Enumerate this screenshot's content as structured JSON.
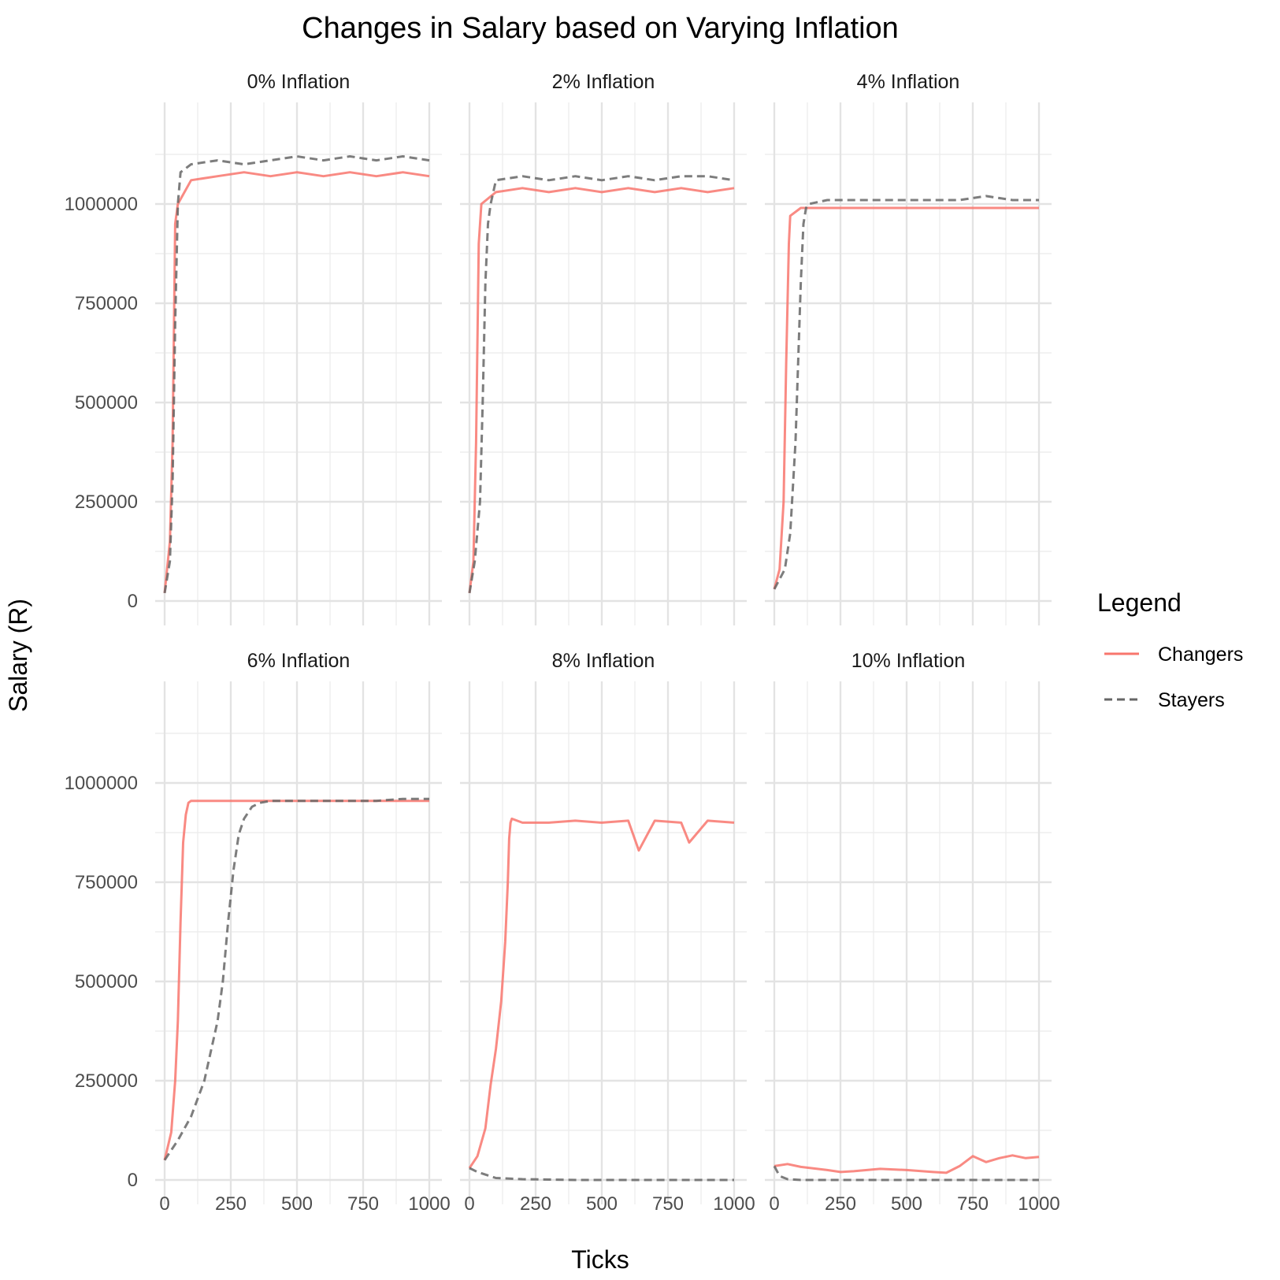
{
  "chart_data": {
    "type": "line",
    "title": "Changes in Salary based on Varying Inflation",
    "xlabel": "Ticks",
    "ylabel": "Salary (R)",
    "xlim": [
      0,
      1000
    ],
    "ylim": [
      0,
      1200000
    ],
    "x_ticks": [
      "0",
      "250",
      "500",
      "750",
      "1000"
    ],
    "y_ticks": [
      "0",
      "250000",
      "500000",
      "750000",
      "1000000"
    ],
    "grid": true,
    "legend": {
      "title": "Legend",
      "position": "right",
      "entries": [
        {
          "label": "Changers",
          "color": "#f8766d",
          "style": "solid"
        },
        {
          "label": "Stayers",
          "color": "#666666",
          "style": "dashed"
        }
      ]
    },
    "facets": [
      {
        "label": "0% Inflation",
        "series": [
          {
            "name": "Changers",
            "x": [
              0,
              20,
              30,
              40,
              50,
              100,
              200,
              300,
              400,
              500,
              600,
              700,
              800,
              900,
              1000
            ],
            "y": [
              20000,
              150000,
              400000,
              950000,
              1000000,
              1060000,
              1070000,
              1080000,
              1070000,
              1080000,
              1070000,
              1080000,
              1070000,
              1080000,
              1070000
            ]
          },
          {
            "name": "Stayers",
            "x": [
              0,
              20,
              30,
              40,
              50,
              60,
              100,
              200,
              300,
              400,
              500,
              600,
              700,
              800,
              900,
              1000
            ],
            "y": [
              20000,
              100000,
              300000,
              700000,
              1000000,
              1080000,
              1100000,
              1110000,
              1100000,
              1110000,
              1120000,
              1110000,
              1120000,
              1110000,
              1120000,
              1110000
            ]
          }
        ]
      },
      {
        "label": "2% Inflation",
        "series": [
          {
            "name": "Changers",
            "x": [
              0,
              15,
              25,
              35,
              45,
              100,
              200,
              300,
              400,
              500,
              600,
              700,
              800,
              900,
              1000
            ],
            "y": [
              20000,
              100000,
              400000,
              900000,
              1000000,
              1030000,
              1040000,
              1030000,
              1040000,
              1030000,
              1040000,
              1030000,
              1040000,
              1030000,
              1040000
            ]
          },
          {
            "name": "Stayers",
            "x": [
              0,
              20,
              40,
              50,
              60,
              70,
              80,
              100,
              200,
              300,
              400,
              500,
              600,
              700,
              800,
              900,
              1000
            ],
            "y": [
              20000,
              100000,
              250000,
              500000,
              800000,
              950000,
              1000000,
              1060000,
              1070000,
              1060000,
              1070000,
              1060000,
              1070000,
              1060000,
              1070000,
              1070000,
              1060000
            ]
          }
        ]
      },
      {
        "label": "4% Inflation",
        "series": [
          {
            "name": "Changers",
            "x": [
              0,
              20,
              35,
              45,
              55,
              60,
              100,
              200,
              300,
              400,
              500,
              600,
              700,
              800,
              900,
              1000
            ],
            "y": [
              30000,
              80000,
              250000,
              600000,
              900000,
              970000,
              990000,
              990000,
              990000,
              990000,
              990000,
              990000,
              990000,
              990000,
              990000,
              990000
            ]
          },
          {
            "name": "Stayers",
            "x": [
              0,
              40,
              60,
              80,
              100,
              110,
              120,
              130,
              200,
              300,
              400,
              500,
              600,
              700,
              800,
              900,
              1000
            ],
            "y": [
              30000,
              80000,
              170000,
              400000,
              800000,
              950000,
              990000,
              1000000,
              1010000,
              1010000,
              1010000,
              1010000,
              1010000,
              1010000,
              1020000,
              1010000,
              1010000
            ]
          }
        ]
      },
      {
        "label": "6% Inflation",
        "series": [
          {
            "name": "Changers",
            "x": [
              0,
              25,
              40,
              50,
              60,
              70,
              80,
              90,
              100,
              200,
              300,
              400,
              500,
              600,
              700,
              800,
              900,
              1000
            ],
            "y": [
              50000,
              120000,
              250000,
              400000,
              650000,
              850000,
              920000,
              950000,
              955000,
              955000,
              955000,
              955000,
              955000,
              955000,
              955000,
              955000,
              955000,
              955000
            ]
          },
          {
            "name": "Stayers",
            "x": [
              0,
              50,
              100,
              150,
              200,
              220,
              240,
              260,
              280,
              300,
              330,
              360,
              400,
              500,
              600,
              700,
              800,
              900,
              1000
            ],
            "y": [
              50000,
              100000,
              160000,
              250000,
              400000,
              500000,
              650000,
              780000,
              870000,
              910000,
              940000,
              950000,
              955000,
              955000,
              955000,
              955000,
              955000,
              960000,
              960000
            ]
          }
        ]
      },
      {
        "label": "8% Inflation",
        "series": [
          {
            "name": "Changers",
            "x": [
              0,
              30,
              60,
              80,
              100,
              120,
              135,
              145,
              150,
              155,
              160,
              200,
              300,
              400,
              500,
              600,
              640,
              700,
              800,
              830,
              900,
              1000
            ],
            "y": [
              30000,
              60000,
              130000,
              240000,
              330000,
              450000,
              600000,
              750000,
              860000,
              900000,
              910000,
              900000,
              900000,
              905000,
              900000,
              905000,
              830000,
              905000,
              900000,
              850000,
              905000,
              900000
            ]
          },
          {
            "name": "Stayers",
            "x": [
              0,
              30,
              100,
              200,
              300,
              400,
              500,
              600,
              700,
              800,
              900,
              1000
            ],
            "y": [
              30000,
              20000,
              5000,
              2000,
              1000,
              0,
              0,
              0,
              0,
              0,
              0,
              0
            ]
          }
        ]
      },
      {
        "label": "10% Inflation",
        "series": [
          {
            "name": "Changers",
            "x": [
              0,
              50,
              100,
              200,
              250,
              300,
              400,
              500,
              600,
              650,
              700,
              750,
              800,
              850,
              900,
              950,
              1000
            ],
            "y": [
              35000,
              40000,
              33000,
              25000,
              20000,
              22000,
              28000,
              25000,
              20000,
              18000,
              35000,
              60000,
              45000,
              55000,
              62000,
              55000,
              58000
            ]
          },
          {
            "name": "Stayers",
            "x": [
              0,
              20,
              50,
              100,
              200,
              300,
              400,
              500,
              600,
              700,
              800,
              900,
              1000
            ],
            "y": [
              35000,
              10000,
              2000,
              0,
              0,
              0,
              0,
              0,
              0,
              0,
              0,
              0,
              0
            ]
          }
        ]
      }
    ]
  }
}
